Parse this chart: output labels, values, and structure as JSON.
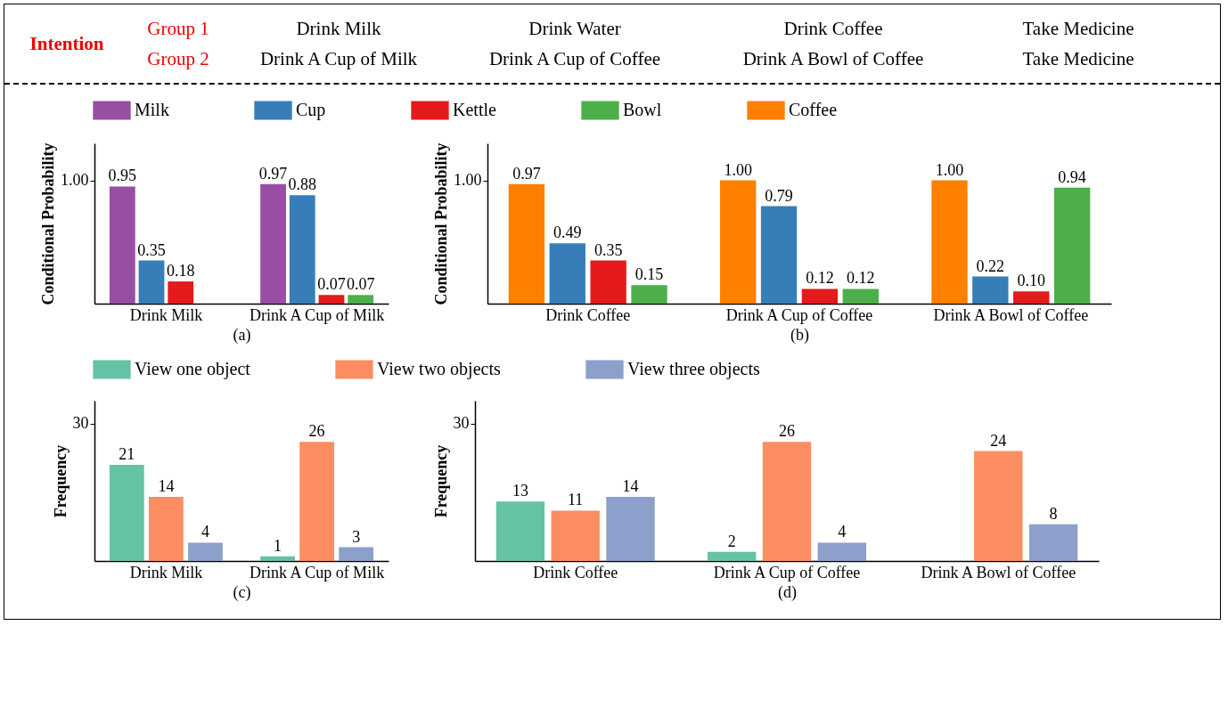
{
  "chart_data": [
    {
      "type": "other",
      "title": "Intention",
      "annotations": [
        "Group 1",
        "Drink Milk",
        "Drink Water",
        "Drink Coffee",
        "Take Medicine",
        "Group 2",
        "Drink A Cup of Milk",
        "Drink A Cup of Coffee",
        "Drink A Bowl of Coffee",
        "Take Medicine"
      ]
    },
    {
      "type": "bar",
      "xlabel": "(a)",
      "ylabel": "Conditional Probability",
      "categories": [
        "Drink Milk",
        "Drink A Cup of Milk"
      ],
      "series": [
        {
          "name": "Milk",
          "color": "#984ea3",
          "values": [
            0.95,
            0.97
          ],
          "value_labels": [
            "0.95",
            "0.97"
          ]
        },
        {
          "name": "Cup",
          "color": "#377eb8",
          "values": [
            0.35,
            0.88
          ],
          "value_labels": [
            "0.35",
            "0.88"
          ]
        },
        {
          "name": "Kettle",
          "color": "#e41a1c",
          "values": [
            0.18,
            0.07
          ],
          "value_labels": [
            "0.18",
            "0.07"
          ]
        },
        {
          "name": "Bowl",
          "color": "#4daf4a",
          "values": [
            null,
            0.07
          ],
          "value_labels": [
            null,
            "0.07"
          ]
        }
      ],
      "ylim": [
        0,
        1.3
      ],
      "yticks": [
        {
          "value": 1,
          "label": "1.00"
        }
      ],
      "legend": "top"
    },
    {
      "type": "bar",
      "xlabel": "(b)",
      "ylabel": "Conditional Probability",
      "categories": [
        "Drink Coffee",
        "Drink A Cup of Coffee",
        "Drink A Bowl of Coffee"
      ],
      "series": [
        {
          "name": "Coffee",
          "color": "#ff7f00",
          "values": [
            0.97,
            1.0,
            1.0
          ],
          "value_labels": [
            "0.97",
            "1.00",
            "1.00"
          ]
        },
        {
          "name": "Cup",
          "color": "#377eb8",
          "values": [
            0.49,
            0.79,
            0.22
          ],
          "value_labels": [
            "0.49",
            "0.79",
            "0.22"
          ]
        },
        {
          "name": "Kettle",
          "color": "#e41a1c",
          "values": [
            0.35,
            0.12,
            0.1
          ],
          "value_labels": [
            "0.35",
            "0.12",
            "0.10"
          ]
        },
        {
          "name": "Bowl",
          "color": "#4daf4a",
          "values": [
            0.15,
            0.12,
            0.94
          ],
          "value_labels": [
            "0.15",
            "0.12",
            "0.94"
          ]
        }
      ],
      "ylim": [
        0,
        1.3
      ],
      "yticks": [
        {
          "value": 1,
          "label": "1.00"
        }
      ],
      "legend": "top"
    },
    {
      "type": "bar",
      "xlabel": "(c)",
      "ylabel": "Frequency",
      "categories": [
        "Drink Milk",
        "Drink A Cup of Milk"
      ],
      "series": [
        {
          "name": "View one object",
          "color": "#66c2a5",
          "values": [
            21,
            1
          ]
        },
        {
          "name": "View two objects",
          "color": "#fc8d62",
          "values": [
            14,
            26
          ]
        },
        {
          "name": "View three objects",
          "color": "#8da0cb",
          "values": [
            4,
            3
          ]
        }
      ],
      "ylim": [
        0,
        35
      ],
      "yticks": [
        30
      ],
      "data_labels": true,
      "legend": "top"
    },
    {
      "type": "bar",
      "xlabel": "(d)",
      "ylabel": "Frequency",
      "categories": [
        "Drink Coffee",
        "Drink A Cup of Coffee",
        "Drink A Bowl of Coffee"
      ],
      "series": [
        {
          "name": "View one object",
          "color": "#66c2a5",
          "values": [
            13,
            2,
            null
          ]
        },
        {
          "name": "View two objects",
          "color": "#fc8d62",
          "values": [
            11,
            26,
            24
          ]
        },
        {
          "name": "View three objects",
          "color": "#8da0cb",
          "values": [
            14,
            4,
            8
          ]
        }
      ],
      "ylim": [
        0,
        35
      ],
      "yticks": [
        30
      ],
      "data_labels": true,
      "legend": "top"
    }
  ]
}
